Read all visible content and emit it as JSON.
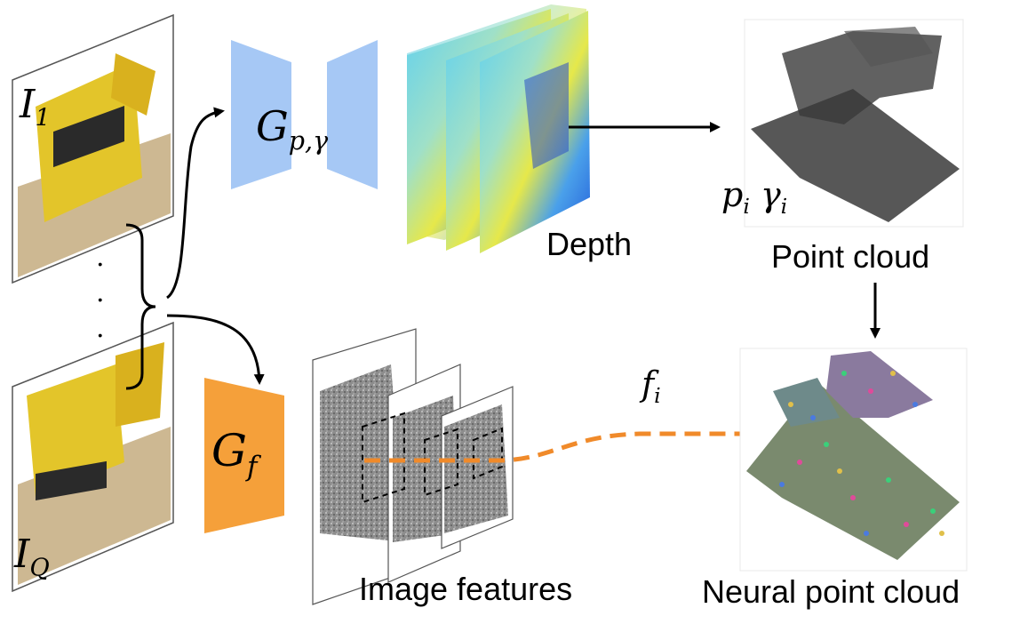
{
  "images": {
    "first": {
      "symbol": "I",
      "sub": "1"
    },
    "last": {
      "symbol": "I",
      "sub": "Q"
    },
    "dots": ".\n.\n."
  },
  "networks": {
    "geometry": {
      "symbol": "G",
      "sub": "p,γ",
      "color": "#a6c8f5"
    },
    "feature": {
      "symbol": "G",
      "sub": "f",
      "color": "#f5a03a"
    }
  },
  "labels": {
    "depth": "Depth",
    "point_cloud": "Point cloud",
    "point_attrs": "p",
    "point_attrs_sub1": "i",
    "point_attrs_gamma": "γ",
    "point_attrs_sub2": "i",
    "image_features": "Image features",
    "feature_vector": "f",
    "feature_vector_sub": "i",
    "neural_point_cloud": "Neural point cloud"
  },
  "colors": {
    "arrow": "#000000",
    "dashed_arrow": "#f08a2a",
    "depth_blue": "#2a6be0",
    "depth_yellow": "#e6e84a"
  },
  "icons": [
    "excavator-photo",
    "depth-map",
    "point-cloud",
    "feature-map",
    "neural-point-cloud"
  ]
}
